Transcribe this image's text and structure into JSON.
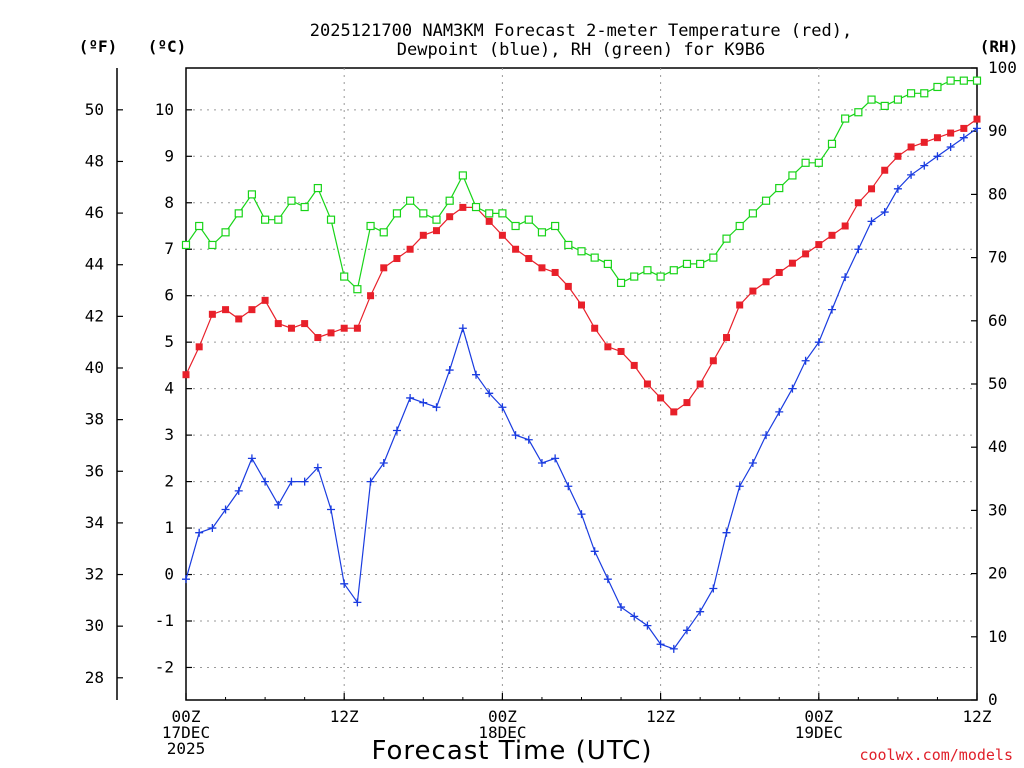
{
  "chart_data": {
    "type": "line",
    "title_line1": "2025121700 NAM3KM Forecast 2-meter Temperature (red),",
    "title_line2": "Dewpoint (blue), RH (green) for K9B6",
    "xlabel": "Forecast Time (UTC)",
    "credit": "coolwx.com/models",
    "units": {
      "fahrenheit": "(ºF)",
      "celsius": "(ºC)",
      "rh": "(RH)"
    },
    "x_ticks": [
      {
        "hour": 0,
        "lines": [
          "00Z",
          "17DEC",
          "2025"
        ]
      },
      {
        "hour": 12,
        "lines": [
          "12Z"
        ]
      },
      {
        "hour": 24,
        "lines": [
          "00Z",
          "18DEC"
        ]
      },
      {
        "hour": 36,
        "lines": [
          "12Z"
        ]
      },
      {
        "hour": 48,
        "lines": [
          "00Z",
          "19DEC"
        ]
      },
      {
        "hour": 60,
        "lines": [
          "12Z"
        ]
      }
    ],
    "xlim": [
      0,
      60
    ],
    "celsius_ticks": [
      -2,
      -1,
      0,
      1,
      2,
      3,
      4,
      5,
      6,
      7,
      8,
      9,
      10
    ],
    "fahrenheit_ticks": [
      28,
      30,
      32,
      34,
      36,
      38,
      40,
      42,
      44,
      46,
      48,
      50
    ],
    "rh_ticks": [
      0,
      10,
      20,
      30,
      40,
      50,
      60,
      70,
      80,
      90,
      100
    ],
    "ylim_celsius": [
      -2.7,
      10.9
    ],
    "ylim_rh": [
      0,
      100
    ],
    "hours": [
      0,
      1,
      2,
      3,
      4,
      5,
      6,
      7,
      8,
      9,
      10,
      11,
      12,
      13,
      14,
      15,
      16,
      17,
      18,
      19,
      20,
      21,
      22,
      23,
      24,
      25,
      26,
      27,
      28,
      29,
      30,
      31,
      32,
      33,
      34,
      35,
      36,
      37,
      38,
      39,
      40,
      41,
      42,
      43,
      44,
      45,
      46,
      47,
      48,
      49,
      50,
      51,
      52,
      53,
      54,
      55,
      56,
      57,
      58,
      59,
      60
    ],
    "series": [
      {
        "name": "Temperature",
        "unit": "C",
        "color": "#e8202a",
        "marker": "filled-square",
        "values": [
          4.3,
          4.9,
          5.6,
          5.7,
          5.5,
          5.7,
          5.9,
          5.4,
          5.3,
          5.4,
          5.1,
          5.2,
          5.3,
          5.3,
          6.0,
          6.6,
          6.8,
          7.0,
          7.3,
          7.4,
          7.7,
          7.9,
          7.9,
          7.6,
          7.3,
          7.0,
          6.8,
          6.6,
          6.5,
          6.2,
          5.8,
          5.3,
          4.9,
          4.8,
          4.5,
          4.1,
          3.8,
          3.5,
          3.7,
          4.1,
          4.6,
          5.1,
          5.8,
          6.1,
          6.3,
          6.5,
          6.7,
          6.9,
          7.1,
          7.3,
          7.5,
          8.0,
          8.3,
          8.7,
          9.0,
          9.2,
          9.3,
          9.4,
          9.5,
          9.6,
          9.8
        ]
      },
      {
        "name": "Dewpoint",
        "unit": "C",
        "color": "#1a3ce0",
        "marker": "plus",
        "values": [
          -0.1,
          0.9,
          1.0,
          1.4,
          1.8,
          2.5,
          2.0,
          1.5,
          2.0,
          2.0,
          2.3,
          1.4,
          -0.2,
          -0.6,
          2.0,
          2.4,
          3.1,
          3.8,
          3.7,
          3.6,
          4.4,
          5.3,
          4.3,
          3.9,
          3.6,
          3.0,
          2.9,
          2.4,
          2.5,
          1.9,
          1.3,
          0.5,
          -0.1,
          -0.7,
          -0.9,
          -1.1,
          -1.5,
          -1.6,
          -1.2,
          -0.8,
          -0.3,
          0.9,
          1.9,
          2.4,
          3.0,
          3.5,
          4.0,
          4.6,
          5.0,
          5.7,
          6.4,
          7.0,
          7.6,
          7.8,
          8.3,
          8.6,
          8.8,
          9.0,
          9.2,
          9.4,
          9.6
        ]
      },
      {
        "name": "Relative Humidity",
        "unit": "%",
        "color": "#18d418",
        "marker": "open-square",
        "values": [
          72,
          75,
          72,
          74,
          77,
          80,
          76,
          76,
          79,
          78,
          81,
          76,
          67,
          65,
          75,
          74,
          77,
          79,
          77,
          76,
          79,
          83,
          78,
          77,
          77,
          75,
          76,
          74,
          75,
          72,
          71,
          70,
          69,
          66,
          67,
          68,
          67,
          68,
          69,
          69,
          70,
          73,
          75,
          77,
          79,
          81,
          83,
          85,
          85,
          88,
          92,
          93,
          95,
          94,
          95,
          96,
          96,
          97,
          98,
          98,
          98
        ]
      }
    ]
  }
}
